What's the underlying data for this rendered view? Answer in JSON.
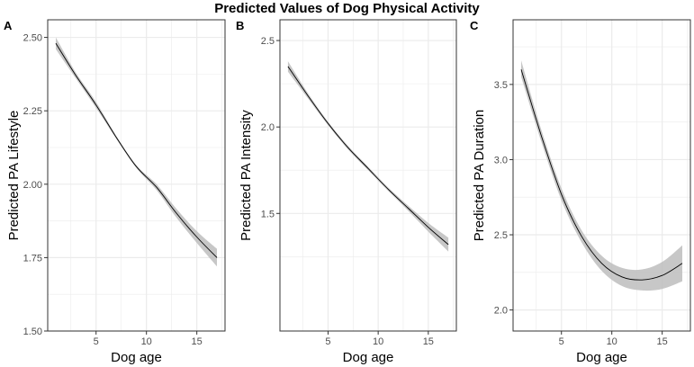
{
  "title": "Predicted Values of Dog Physical Activity",
  "colors": {
    "line": "#000000",
    "ribbon": "#bdbdbd",
    "grid": "#ebebeb",
    "border": "#333333"
  },
  "chart_data": [
    {
      "type": "line",
      "panel": "A",
      "xlabel": "Dog age",
      "ylabel": "Predicted PA Lifestyle",
      "xlim": [
        0.2,
        17.8
      ],
      "ylim": [
        1.5,
        2.56
      ],
      "xticks": [
        5,
        10,
        15
      ],
      "yticks": [
        1.5,
        1.75,
        2.0,
        2.25,
        2.5
      ],
      "ytick_labels": [
        "1.50",
        "1.75",
        "2.00",
        "2.25",
        "2.50"
      ],
      "x": [
        1,
        3,
        5,
        7,
        9,
        11,
        13,
        15,
        17
      ],
      "y": [
        2.48,
        2.37,
        2.27,
        2.16,
        2.06,
        1.99,
        1.9,
        1.82,
        1.75
      ],
      "ci_low": [
        2.46,
        2.36,
        2.26,
        2.155,
        2.055,
        1.98,
        1.885,
        1.8,
        1.72
      ],
      "ci_high": [
        2.5,
        2.38,
        2.28,
        2.165,
        2.065,
        2.0,
        1.915,
        1.84,
        1.78
      ]
    },
    {
      "type": "line",
      "panel": "B",
      "xlabel": "Dog age",
      "ylabel": "Predicted PA Intensity",
      "xlim": [
        0.2,
        17.8
      ],
      "ylim": [
        0.82,
        2.62
      ],
      "xticks": [
        5,
        10,
        15
      ],
      "yticks": [
        1.5,
        2.0,
        2.5
      ],
      "ytick_labels": [
        "1.5",
        "2.0",
        "2.5"
      ],
      "x": [
        1,
        3,
        5,
        7,
        9,
        11,
        13,
        15,
        17
      ],
      "y": [
        2.35,
        2.18,
        2.02,
        1.88,
        1.76,
        1.64,
        1.53,
        1.42,
        1.32
      ],
      "ci_low": [
        2.32,
        2.165,
        2.01,
        1.87,
        1.75,
        1.63,
        1.515,
        1.395,
        1.28
      ],
      "ci_high": [
        2.38,
        2.195,
        2.03,
        1.89,
        1.77,
        1.65,
        1.545,
        1.445,
        1.36
      ]
    },
    {
      "type": "line",
      "panel": "C",
      "xlabel": "Dog age",
      "ylabel": "Predicted PA Duration",
      "xlim": [
        0.2,
        17.8
      ],
      "ylim": [
        1.86,
        3.93
      ],
      "xticks": [
        5,
        10,
        15
      ],
      "yticks": [
        2.0,
        2.5,
        3.0,
        3.5
      ],
      "ytick_labels": [
        "2.0",
        "2.5",
        "3.0",
        "3.5"
      ],
      "x": [
        1,
        3,
        5,
        7,
        9,
        11,
        13,
        15,
        17
      ],
      "y": [
        3.6,
        3.16,
        2.77,
        2.49,
        2.31,
        2.22,
        2.2,
        2.23,
        2.31
      ],
      "ci_low": [
        3.55,
        3.12,
        2.73,
        2.45,
        2.26,
        2.16,
        2.13,
        2.14,
        2.19
      ],
      "ci_high": [
        3.66,
        3.2,
        2.81,
        2.53,
        2.36,
        2.28,
        2.27,
        2.32,
        2.43
      ]
    }
  ]
}
